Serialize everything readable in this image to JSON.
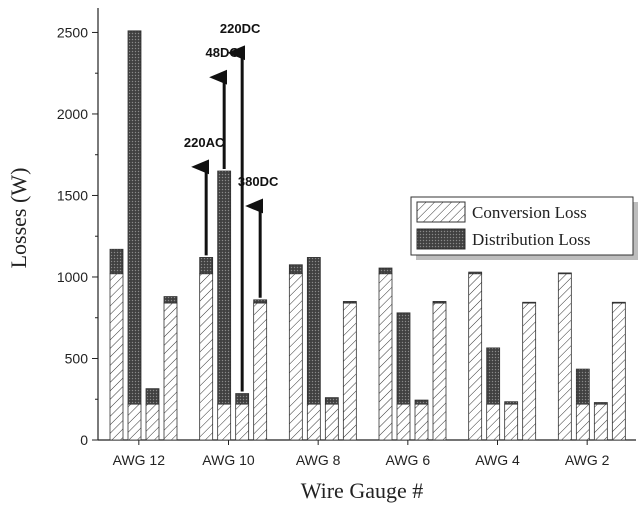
{
  "chart_data": {
    "type": "bar",
    "stacked": true,
    "xlabel": "Wire Gauge #",
    "ylabel": "Losses (W)",
    "ylim": [
      0,
      2650
    ],
    "yticks": [
      0,
      500,
      1000,
      1500,
      2000,
      2500
    ],
    "categories": [
      "AWG 12",
      "AWG 10",
      "AWG 8",
      "AWG 6",
      "AWG 4",
      "AWG 2"
    ],
    "systems": [
      "220AC",
      "48DC",
      "220DC",
      "380DC"
    ],
    "series": [
      {
        "name": "Conversion Loss",
        "pattern": "diagonal-hatch",
        "values": [
          [
            1020,
            220,
            220,
            840
          ],
          [
            1020,
            220,
            220,
            840
          ],
          [
            1020,
            220,
            220,
            840
          ],
          [
            1020,
            220,
            220,
            840
          ],
          [
            1020,
            220,
            220,
            840
          ],
          [
            1020,
            220,
            220,
            840
          ]
        ]
      },
      {
        "name": "Distribution Loss",
        "pattern": "dense-crosshatch",
        "values": [
          [
            150,
            2290,
            95,
            40
          ],
          [
            100,
            1430,
            65,
            20
          ],
          [
            55,
            900,
            40,
            10
          ],
          [
            35,
            560,
            25,
            10
          ],
          [
            10,
            345,
            15,
            5
          ],
          [
            5,
            215,
            10,
            5
          ]
        ]
      }
    ],
    "legend": {
      "position": "right",
      "entries": [
        "Conversion Loss",
        "Distribution Loss"
      ]
    },
    "annotations": [
      {
        "label": "220AC",
        "group": 1,
        "bar": 0,
        "arrow_to": 1700
      },
      {
        "label": "48DC",
        "group": 1,
        "bar": 1,
        "arrow_to": 2250
      },
      {
        "label": "220DC",
        "group": 1,
        "bar": 2,
        "arrow_to": 2400
      },
      {
        "label": "380DC",
        "group": 1,
        "bar": 3,
        "arrow_to": 1460
      }
    ],
    "grid": false
  }
}
